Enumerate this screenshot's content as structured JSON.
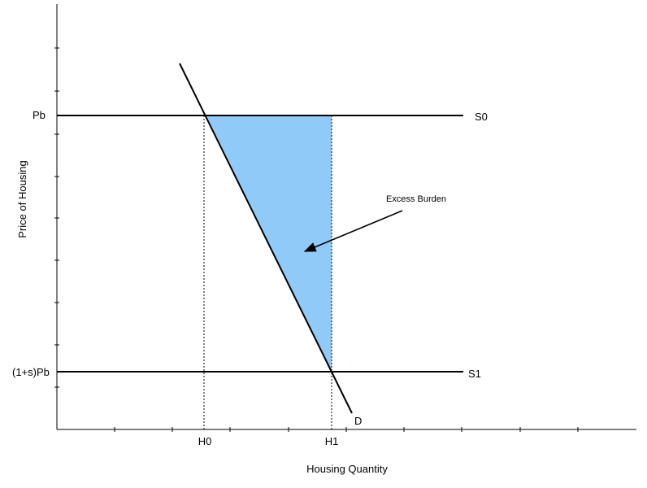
{
  "axes": {
    "x_label": "Housing Quantity",
    "y_label": "Price of Housing"
  },
  "price_levels": {
    "upper": "Pb",
    "lower": "(1+s)Pb"
  },
  "supply_curves": {
    "s0": "S0",
    "s1": "S1"
  },
  "demand_curve": "D",
  "quantity_levels": {
    "h0": "H0",
    "h1": "H1"
  },
  "annotation": "Excess Burden",
  "colors": {
    "shaded_area": "#90CAF9",
    "lines": "#000000"
  }
}
